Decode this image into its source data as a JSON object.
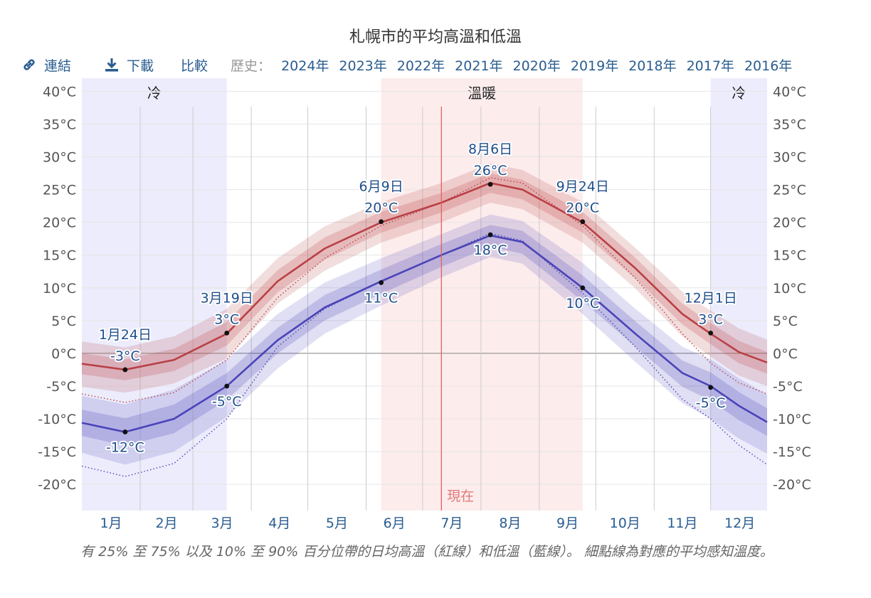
{
  "title": "札幌市的平均高溫和低溫",
  "toolbar": {
    "link_label": "連結",
    "download_label": "下載",
    "compare_label": "比較",
    "history_label": "歷史：",
    "years": [
      "2024年",
      "2023年",
      "2022年",
      "2021年",
      "2020年",
      "2019年",
      "2018年",
      "2017年",
      "2016年"
    ]
  },
  "caption": "有 25% 至 75% 以及 10% 至 90% 百分位帶的日均高溫（紅線）和低溫（藍線）。 細點線為對應的平均感知溫度。",
  "colors": {
    "high_line": "#b94045",
    "low_line": "#4a44b8",
    "cold_band": "#ececfc",
    "warm_band": "#fdecec",
    "now_line": "#e06060",
    "label_text": "#1f4e8c"
  },
  "chart_data": {
    "type": "line",
    "x_unit": "day-of-year",
    "ylim": [
      -24,
      42
    ],
    "yticks": [
      40,
      35,
      30,
      25,
      20,
      15,
      10,
      5,
      0,
      -5,
      -10,
      -15,
      -20
    ],
    "ytick_labels": [
      "40°C",
      "35°C",
      "30°C",
      "25°C",
      "20°C",
      "15°C",
      "10°C",
      "5°C",
      "0°C",
      "-5°C",
      "-10°C",
      "-15°C",
      "-20°C"
    ],
    "months": [
      "1月",
      "2月",
      "3月",
      "4月",
      "5月",
      "6月",
      "7月",
      "8月",
      "9月",
      "10月",
      "11月",
      "12月"
    ],
    "seasons": [
      {
        "label": "冷",
        "start_day": 1,
        "end_day": 78
      },
      {
        "label": "溫暖",
        "start_day": 160,
        "end_day": 267
      },
      {
        "label": "冷",
        "start_day": 335,
        "end_day": 365
      }
    ],
    "now": {
      "label": "現在",
      "day": 192
    },
    "x": [
      1,
      24,
      50,
      78,
      105,
      130,
      160,
      192,
      218,
      235,
      267,
      295,
      320,
      335,
      350,
      365
    ],
    "series": [
      {
        "key": "high",
        "values": [
          -1.6,
          -2.5,
          -1,
          3,
          11,
          16,
          20,
          23,
          26,
          25,
          20,
          13,
          6,
          3,
          0.2,
          -1.4
        ],
        "p25": [
          -3.2,
          -4.1,
          -2.7,
          1.2,
          9.3,
          14.3,
          18.4,
          21.5,
          24.5,
          23.5,
          18.4,
          11.4,
          4.4,
          1.4,
          -1.5,
          -3.1
        ],
        "p75": [
          0,
          -0.9,
          0.7,
          4.8,
          12.7,
          17.7,
          21.6,
          24.5,
          27.5,
          26.5,
          21.6,
          14.6,
          7.6,
          4.6,
          1.9,
          0.2
        ],
        "p10": [
          -5.1,
          -6,
          -4.6,
          -0.8,
          7.6,
          12.6,
          16.9,
          20,
          23,
          22,
          16.9,
          9.9,
          2.6,
          -0.5,
          -3.4,
          -5
        ],
        "p90": [
          1.8,
          0.9,
          2.6,
          6.8,
          14.5,
          19.4,
          23.1,
          26,
          29,
          28,
          23.1,
          16.1,
          9.4,
          6.5,
          3.8,
          2.1
        ],
        "feels": [
          -6.2,
          -7.5,
          -6,
          -1,
          8.5,
          14.5,
          19.5,
          23,
          26.8,
          26,
          19.5,
          11.5,
          3,
          -1.5,
          -4.5,
          -6.2
        ]
      },
      {
        "key": "low",
        "values": [
          -10.6,
          -12,
          -10,
          -5,
          2,
          7,
          11,
          15,
          18,
          17,
          10,
          3,
          -3,
          -5,
          -8,
          -10.5
        ],
        "p25": [
          -12.6,
          -14.1,
          -12.2,
          -7.1,
          0,
          5,
          9.1,
          13.2,
          16.3,
          15.2,
          8,
          1,
          -5.1,
          -7.2,
          -10.2,
          -12.6
        ],
        "p75": [
          -8.6,
          -9.9,
          -7.8,
          -3,
          3.9,
          8.9,
          12.8,
          16.7,
          19.6,
          18.7,
          11.9,
          4.9,
          -1.1,
          -2.9,
          -5.9,
          -8.4
        ],
        "p10": [
          -15.2,
          -17,
          -15,
          -9.7,
          -2.3,
          3,
          7.3,
          11.6,
          14.7,
          13.7,
          6,
          -1.3,
          -7.6,
          -10,
          -13,
          -15.3
        ],
        "p90": [
          -6.5,
          -7.8,
          -5.5,
          -1,
          6,
          10.8,
          14.5,
          18.2,
          21.2,
          20.2,
          13.8,
          6.8,
          1,
          -0.9,
          -3.8,
          -6.3
        ],
        "feels": [
          -17.2,
          -18.8,
          -16.8,
          -10,
          1,
          6.8,
          11,
          15,
          18.3,
          17.2,
          9.2,
          1,
          -7,
          -10,
          -14,
          -17
        ]
      }
    ],
    "annotations": [
      {
        "day": 24,
        "value": -2.5,
        "date": "1月24日",
        "temp": "-3°C",
        "pos": "above"
      },
      {
        "day": 24,
        "value": -12,
        "temp": "-12°C",
        "pos": "below"
      },
      {
        "day": 78,
        "value": 3.1,
        "date": "3月19日",
        "temp": "3°C",
        "pos": "above"
      },
      {
        "day": 78,
        "value": -5,
        "temp": "-5°C",
        "pos": "below"
      },
      {
        "day": 160,
        "value": 20.1,
        "date": "6月9日",
        "temp": "20°C",
        "pos": "above"
      },
      {
        "day": 160,
        "value": 10.8,
        "temp": "11°C",
        "pos": "below"
      },
      {
        "day": 218,
        "value": 25.8,
        "date": "8月6日",
        "temp": "26°C",
        "pos": "above"
      },
      {
        "day": 218,
        "value": 18.1,
        "temp": "18°C",
        "pos": "below"
      },
      {
        "day": 267,
        "value": 20.1,
        "date": "9月24日",
        "temp": "20°C",
        "pos": "above"
      },
      {
        "day": 267,
        "value": 10,
        "temp": "10°C",
        "pos": "below"
      },
      {
        "day": 335,
        "value": 3.1,
        "date": "12月1日",
        "temp": "3°C",
        "pos": "above"
      },
      {
        "day": 335,
        "value": -5.2,
        "temp": "-5°C",
        "pos": "below"
      }
    ]
  }
}
